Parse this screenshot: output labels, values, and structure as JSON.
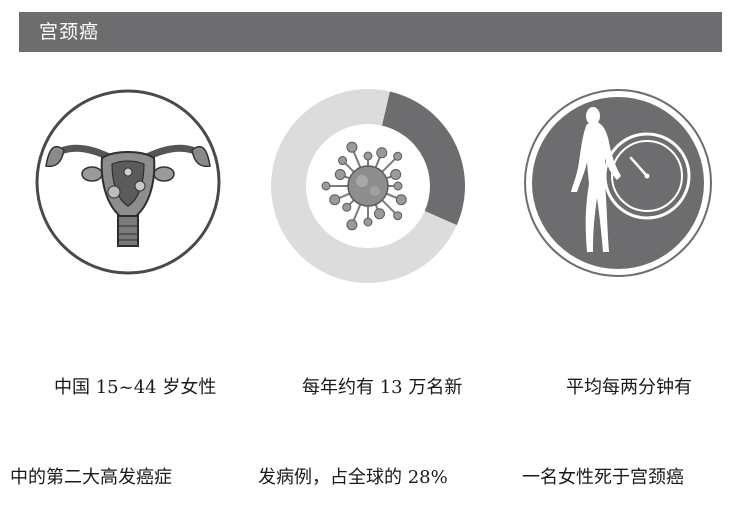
{
  "header": {
    "title": "宫颈癌"
  },
  "panels": [
    {
      "icon": "uterus-illustration-icon",
      "caption_line1": "中国 15~44 岁女性",
      "caption_line2": "中的第二大高发癌症"
    },
    {
      "icon": "virus-cell-icon",
      "caption_line1": "每年约有 13 万名新",
      "caption_line2": "发病例，占全球的 28%"
    },
    {
      "icon": "woman-clock-icon",
      "caption_line1": "平均每两分钟有",
      "caption_line2": "一名女性死于宫颈癌"
    }
  ],
  "chart_data": {
    "type": "pie",
    "values": [
      28,
      72
    ]
  },
  "colors": {
    "header_bg": "#6d6d6f",
    "donut_highlight": "#6d6d6f",
    "donut_rest": "#dcdcdc",
    "circle_fill": "#6d6d6f"
  }
}
